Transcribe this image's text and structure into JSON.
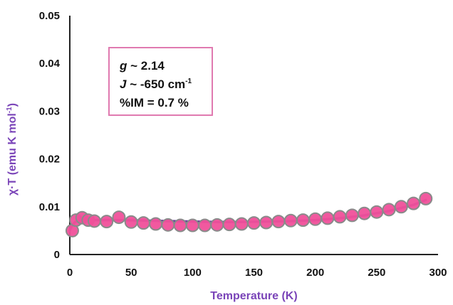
{
  "chart_data": {
    "type": "scatter",
    "xlabel": "Temperature (K)",
    "ylabel_main": "χ·T (emu K mol",
    "ylabel_sup": "-1",
    "ylabel_end": ")",
    "xlim": [
      0,
      300
    ],
    "ylim": [
      0,
      0.05
    ],
    "xticks": [
      0,
      50,
      100,
      150,
      200,
      250,
      300
    ],
    "yticks": [
      0,
      0.01,
      0.02,
      0.03,
      0.04,
      0.05
    ],
    "ytick_labels": [
      "0",
      "0.01",
      "0.02",
      "0.03",
      "0.04",
      "0.05"
    ],
    "grid": false,
    "colors": {
      "marker_fill": "#f0509a",
      "marker_edge": "#8a8a8a",
      "fit_line": "#6a3aa0",
      "axis_title": "#7a44b8",
      "annotation_box": "#e07ab0"
    },
    "annotation": {
      "line1_sym": "g",
      "line1_rest": " ~ 2.14",
      "line2_sym": "J",
      "line2_rest": " ~ -650 cm",
      "line2_sup": "-1",
      "line3": "%IM = 0.7 %"
    },
    "series": [
      {
        "type": "scatter",
        "x": [
          2,
          5,
          10,
          15,
          20,
          30,
          40,
          50,
          60,
          70,
          80,
          90,
          100,
          110,
          120,
          130,
          140,
          150,
          160,
          170,
          180,
          190,
          200,
          210,
          220,
          230,
          240,
          250,
          260,
          270,
          280,
          290
        ],
        "y": [
          0.005,
          0.0072,
          0.0077,
          0.0072,
          0.007,
          0.0069,
          0.0078,
          0.0068,
          0.0066,
          0.0064,
          0.0062,
          0.0061,
          0.0061,
          0.0061,
          0.0062,
          0.0063,
          0.0064,
          0.0066,
          0.0067,
          0.0069,
          0.0071,
          0.0072,
          0.0074,
          0.0076,
          0.0079,
          0.0082,
          0.0086,
          0.0089,
          0.0094,
          0.01,
          0.0107,
          0.0117
        ]
      },
      {
        "type": "line",
        "x": [
          0,
          2,
          5,
          10,
          20,
          40,
          60,
          80,
          100,
          120,
          140,
          160,
          180,
          200,
          220,
          240,
          260,
          280,
          290
        ],
        "y": [
          0.005,
          0.0062,
          0.0069,
          0.0071,
          0.0072,
          0.0072,
          0.0071,
          0.007,
          0.0069,
          0.0068,
          0.0068,
          0.0069,
          0.007,
          0.0072,
          0.0076,
          0.0082,
          0.0091,
          0.0104,
          0.0114
        ]
      }
    ]
  }
}
